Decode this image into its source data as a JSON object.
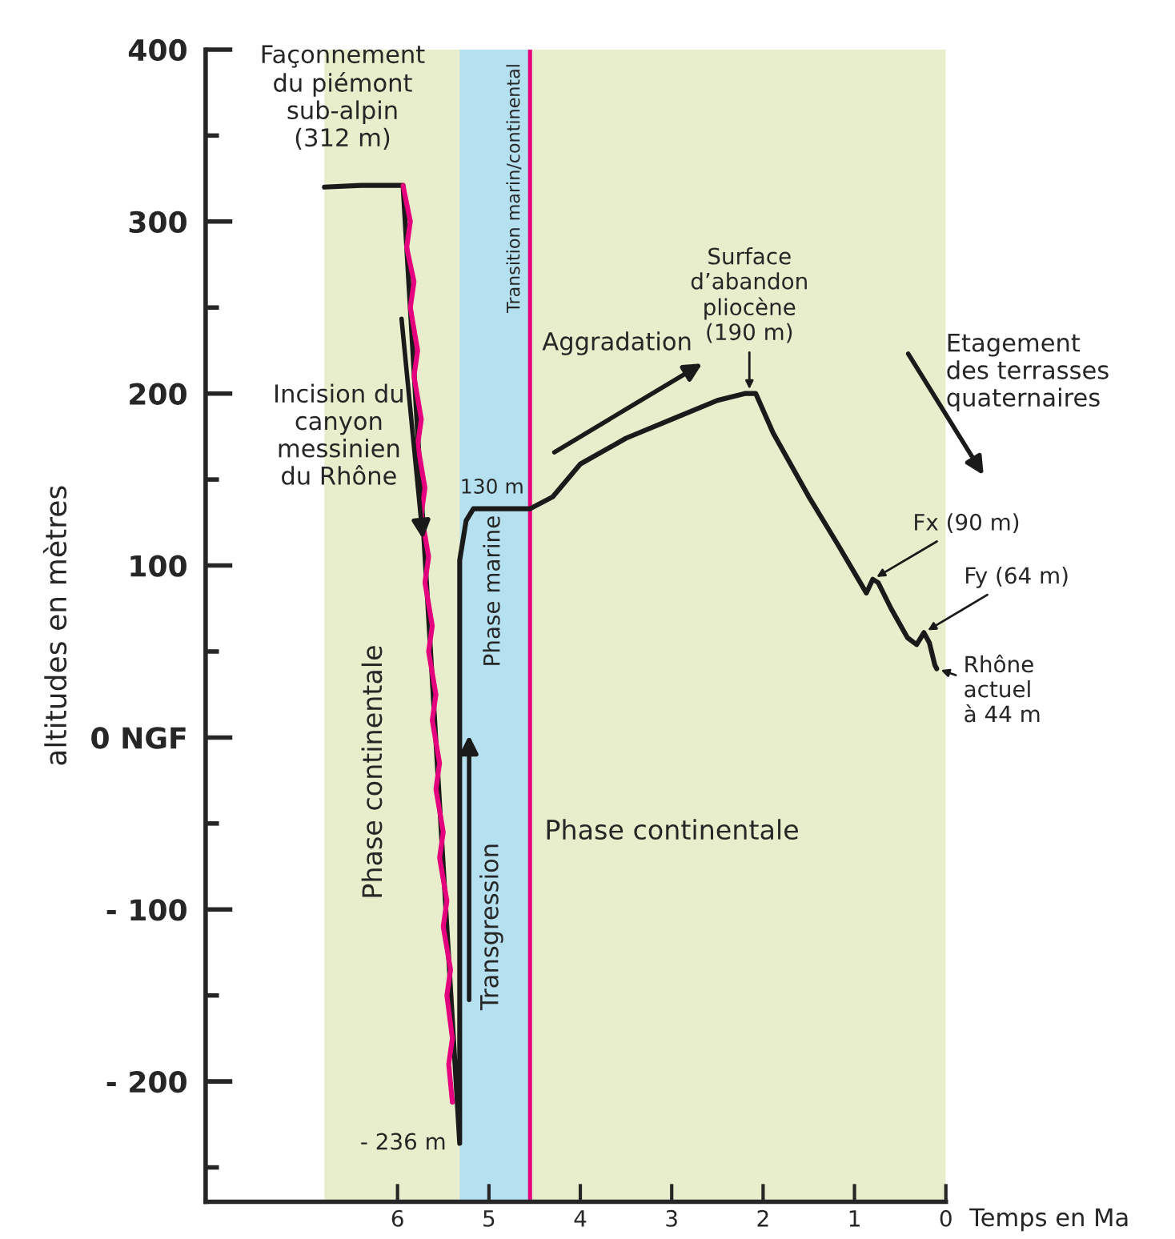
{
  "chart_data": {
    "type": "line",
    "xlabel": "Temps en Ma",
    "ylabel": "altitudes en mètres",
    "xlim": [
      8.1,
      0
    ],
    "ylim": [
      -270,
      400
    ],
    "xticks": [
      6,
      5,
      4,
      3,
      2,
      1,
      0
    ],
    "yticks": [
      {
        "value": 400,
        "label": "400"
      },
      {
        "value": 350,
        "label": null
      },
      {
        "value": 300,
        "label": "300"
      },
      {
        "value": 250,
        "label": null
      },
      {
        "value": 200,
        "label": "200"
      },
      {
        "value": 150,
        "label": null
      },
      {
        "value": 100,
        "label": "100"
      },
      {
        "value": 50,
        "label": null
      },
      {
        "value": 0,
        "label": "0 NGF"
      },
      {
        "value": -50,
        "label": null
      },
      {
        "value": -100,
        "label": "- 100"
      },
      {
        "value": -150,
        "label": null
      },
      {
        "value": -200,
        "label": "- 200"
      },
      {
        "value": -250,
        "label": null
      }
    ],
    "grid": false,
    "legend": false,
    "marker": "none",
    "line_style": "solid",
    "bands": [
      {
        "axis": "x",
        "from": 6.8,
        "to": 0,
        "color": "#e8eecb"
      },
      {
        "axis": "x",
        "from": 5.32,
        "to": 4.55,
        "color": "#b5e0f0"
      }
    ],
    "ref_lines": [
      {
        "axis": "x",
        "value": 4.55,
        "label": "Transition marin/continental",
        "color": "#e5007e",
        "line_style": "solid"
      }
    ],
    "series": [
      {
        "color": "#1a1a1a",
        "x": [
          6.8,
          6.4,
          5.94,
          5.6,
          5.32,
          5.32,
          5.25,
          5.17,
          4.55,
          4.3,
          4.0,
          3.5,
          3.0,
          2.5,
          2.2,
          2.08,
          1.89,
          1.5,
          1.18,
          0.87,
          0.8,
          0.74,
          0.6,
          0.42,
          0.32,
          0.24,
          0.18,
          0.12,
          0.1
        ],
        "values": [
          320,
          321,
          321,
          null,
          -236,
          103,
          126,
          133,
          133,
          140,
          159,
          174,
          185,
          196,
          200,
          200,
          177,
          140,
          112,
          84,
          92,
          90,
          75,
          58,
          54,
          61,
          55,
          42,
          40
        ]
      },
      {
        "color": "#e5007e",
        "x": [
          5.94,
          5.86,
          5.9,
          5.82,
          5.86,
          5.78,
          5.82,
          5.74,
          5.78,
          5.7,
          5.74,
          5.66,
          5.7,
          5.62,
          5.66,
          5.58,
          5.62,
          5.54,
          5.58,
          5.5,
          5.54,
          5.46,
          5.5,
          5.42,
          5.46,
          5.4,
          5.44,
          5.4
        ],
        "values": [
          321,
          300,
          285,
          265,
          250,
          225,
          210,
          185,
          170,
          145,
          130,
          105,
          90,
          65,
          50,
          25,
          10,
          -15,
          -30,
          -55,
          -70,
          -95,
          -110,
          -135,
          -150,
          -175,
          -190,
          -212
        ]
      }
    ],
    "annotations": [
      "Façonnement\ndu piémont\nsub-alpin\n(312 m)",
      "Incision du\ncanyon\nmessinien\ndu Rhône",
      {
        "text": "130 m",
        "x": 5.17,
        "y": 133
      },
      {
        "text": "- 236 m",
        "x": 5.32,
        "y": -236
      },
      "Phase continentale",
      "Phase marine",
      "Transgression",
      "Aggradation",
      {
        "text": "Surface\nd’abandon\npliocène\n(190 m)",
        "x": 2.15,
        "y": 200
      },
      "Phase continentale",
      "Etagement\ndes terrasses\nquaternaires",
      {
        "text": "Fx (90 m)",
        "x": 0.8,
        "y": 92
      },
      {
        "text": "Fy (64 m)",
        "x": 0.24,
        "y": 61
      },
      {
        "text": "Rhône\nactuel\nà 44 m",
        "x": 0.1,
        "y": 40
      }
    ]
  }
}
